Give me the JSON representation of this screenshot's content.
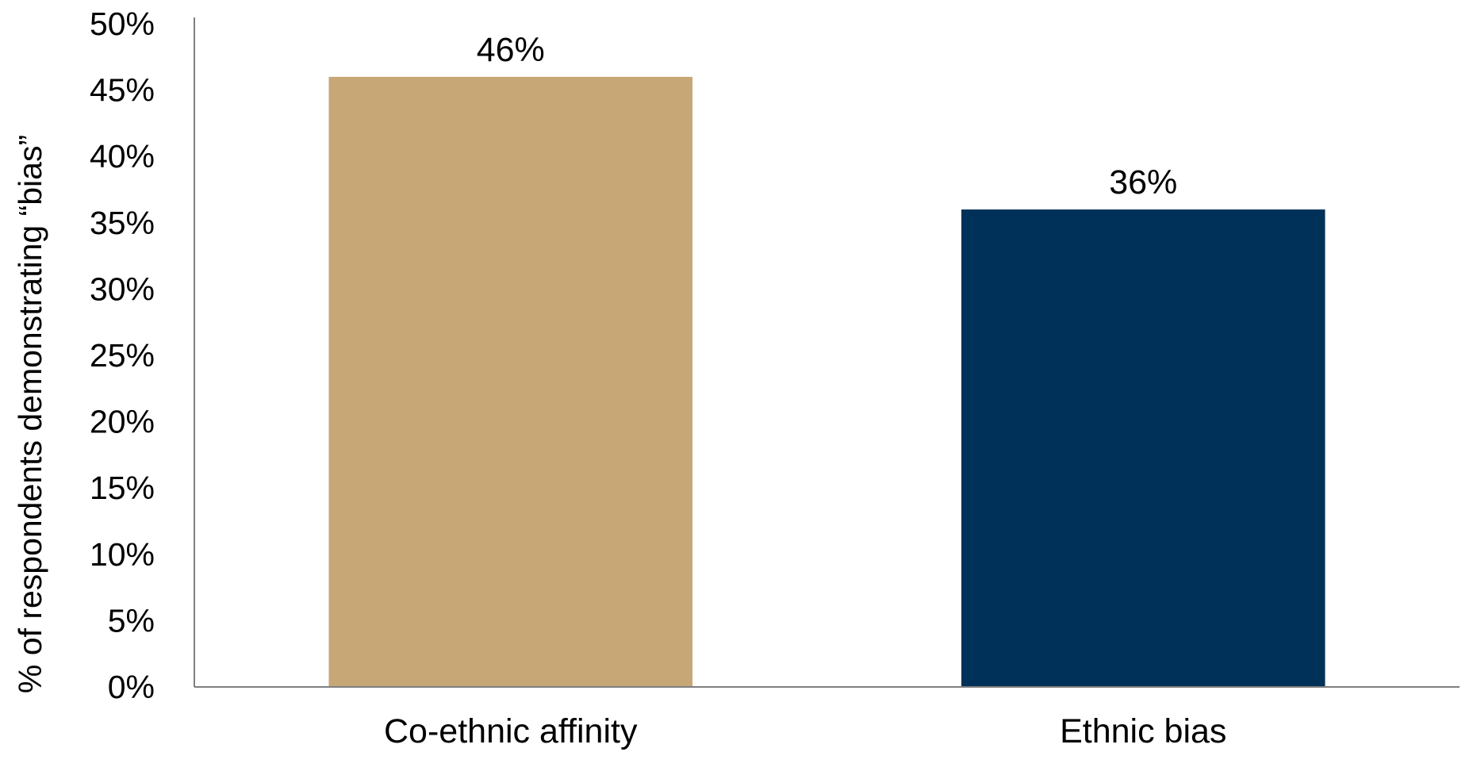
{
  "chart_data": {
    "type": "bar",
    "title": "",
    "xlabel": "",
    "ylabel": "% of respondents demonstrating “bias”",
    "categories": [
      "Co-ethnic affinity",
      "Ethnic bias"
    ],
    "values": [
      46,
      36
    ],
    "data_labels": [
      "46%",
      "36%"
    ],
    "bar_colors": [
      "#C8A777",
      "#003159"
    ],
    "ylim": [
      0,
      50
    ],
    "yticks": [
      0,
      5,
      10,
      15,
      20,
      25,
      30,
      35,
      40,
      45,
      50
    ],
    "ytick_labels": [
      "0%",
      "5%",
      "10%",
      "15%",
      "20%",
      "25%",
      "30%",
      "35%",
      "40%",
      "45%",
      "50%"
    ],
    "grid": false,
    "legend": "none",
    "axis_color": "#7F7F7F"
  }
}
